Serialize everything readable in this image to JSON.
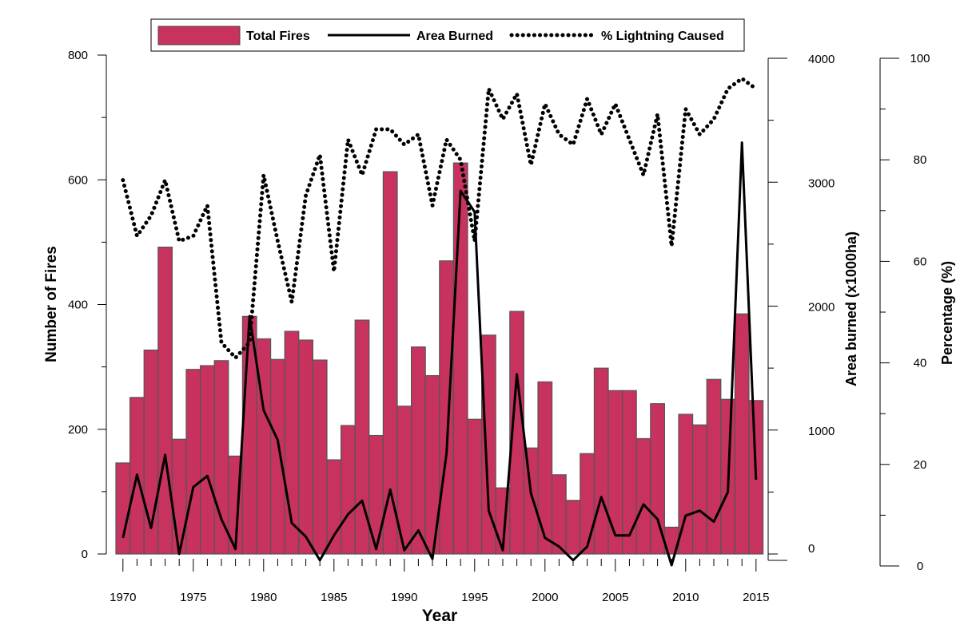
{
  "chart_data": {
    "type": "bar",
    "years": [
      1970,
      1971,
      1972,
      1973,
      1974,
      1975,
      1976,
      1977,
      1978,
      1979,
      1980,
      1981,
      1982,
      1983,
      1984,
      1985,
      1986,
      1987,
      1988,
      1989,
      1990,
      1991,
      1992,
      1993,
      1994,
      1995,
      1996,
      1997,
      1998,
      1999,
      2000,
      2001,
      2002,
      2003,
      2004,
      2005,
      2006,
      2007,
      2008,
      2009,
      2010,
      2011,
      2012,
      2013,
      2014,
      2015
    ],
    "x_tick_labels": [
      "1970",
      "1975",
      "1980",
      "1985",
      "1990",
      "1995",
      "2000",
      "2005",
      "2010",
      "2015"
    ],
    "xlabel": "Year",
    "axes": {
      "fires": {
        "label": "Number of Fires",
        "ticks": [
          "0",
          "200",
          "400",
          "600",
          "800"
        ],
        "lim": [
          0,
          800
        ]
      },
      "area": {
        "label": "Area burned (x1000ha)",
        "ticks": [
          "0",
          "1000",
          "2000",
          "3000",
          "4000"
        ],
        "lim": [
          -70,
          4000
        ]
      },
      "percent": {
        "label": "Percentage (%)",
        "ticks": [
          "0",
          "20",
          "40",
          "60",
          "80",
          "100"
        ],
        "lim": [
          0,
          100
        ]
      }
    },
    "series": [
      {
        "name": "Total Fires",
        "type": "bar",
        "axis": "fires",
        "color": "#c8325e",
        "values": [
          146,
          251,
          327,
          492,
          184,
          296,
          302,
          310,
          157,
          381,
          345,
          312,
          357,
          343,
          311,
          151,
          206,
          375,
          190,
          613,
          237,
          332,
          286,
          470,
          627,
          216,
          351,
          106,
          389,
          170,
          276,
          127,
          86,
          161,
          298,
          262,
          262,
          185,
          241,
          43,
          224,
          207,
          280,
          248,
          385,
          246
        ]
      },
      {
        "name": "Area Burned",
        "type": "line",
        "axis": "area",
        "color": "#000000",
        "values": [
          130,
          640,
          210,
          800,
          0,
          540,
          630,
          280,
          40,
          1920,
          1160,
          920,
          250,
          140,
          -50,
          150,
          320,
          430,
          40,
          520,
          30,
          190,
          -40,
          810,
          2930,
          2760,
          350,
          30,
          1450,
          490,
          130,
          60,
          -50,
          60,
          460,
          150,
          150,
          400,
          280,
          -90,
          310,
          350,
          260,
          500,
          3320,
          600
        ]
      },
      {
        "name": "% Lightning Caused",
        "type": "line",
        "axis": "percent",
        "color": "#000000",
        "values": [
          76,
          65,
          69,
          76,
          64,
          65,
          71,
          44,
          41,
          44,
          77,
          64,
          52,
          73,
          81,
          58,
          84,
          77,
          86,
          86,
          83,
          85,
          71,
          84,
          80,
          64,
          94,
          88,
          93,
          79,
          91,
          85,
          83,
          92,
          85,
          91,
          84,
          77,
          89,
          63,
          90,
          85,
          88,
          94,
          96,
          94
        ]
      }
    ],
    "legend": {
      "position": "top",
      "items": [
        "Total Fires",
        "Area Burned",
        "% Lightning Caused"
      ]
    }
  }
}
